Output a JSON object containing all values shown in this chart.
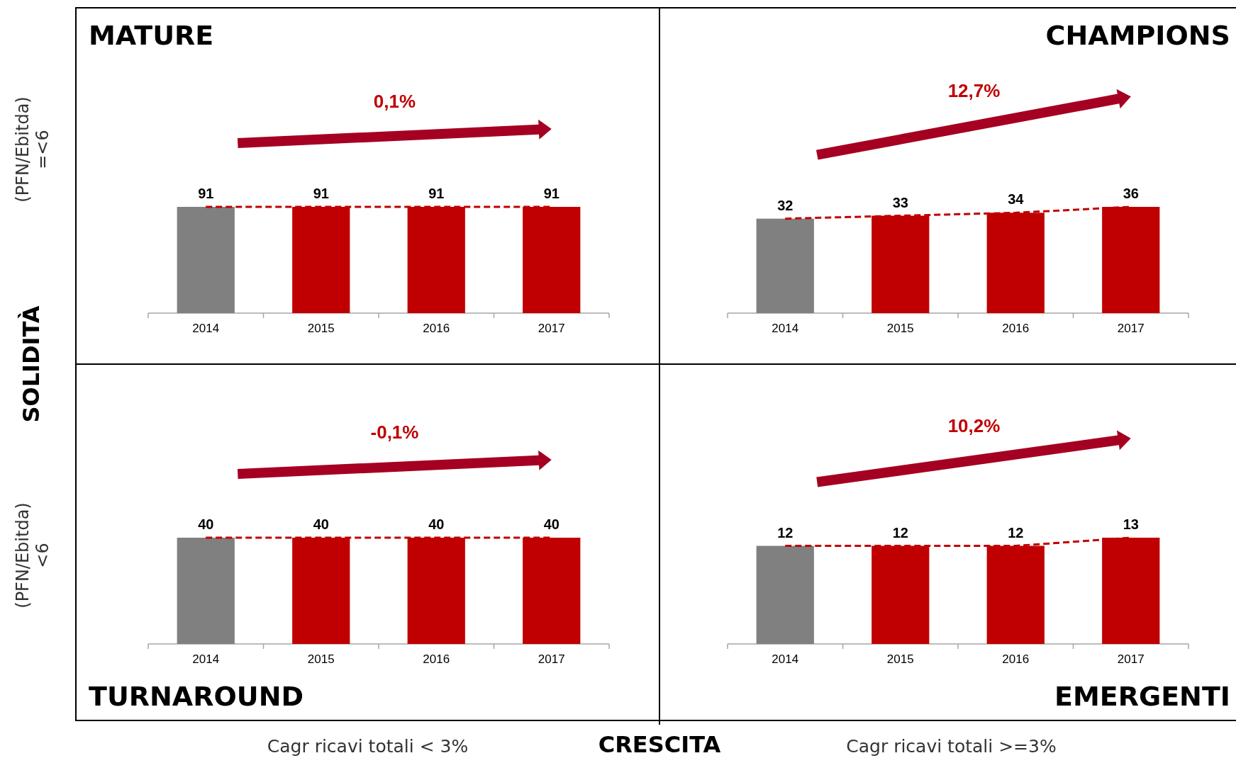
{
  "chart_data": [
    {
      "type": "bar",
      "title": "MATURE",
      "ylabel": "(PFN/Ebitda)\n=<6",
      "annotations": [
        "0,1%",
        "SOLIDITÀ"
      ],
      "categories": [
        "2014",
        "2015",
        "2016",
        "2017"
      ],
      "line_style": "dashed",
      "data_labels": true,
      "series": [
        {
          "type": "bar",
          "colors": [
            "#808080",
            "#c00000",
            "#c00000",
            "#c00000"
          ],
          "values": [
            91,
            91,
            91,
            91
          ]
        }
      ]
    },
    {
      "type": "bar",
      "title": "CHAMPIONS",
      "annotations": [
        "12,7%"
      ],
      "categories": [
        "2014",
        "2015",
        "2016",
        "2017"
      ],
      "line_style": "dashed",
      "data_labels": true,
      "series": [
        {
          "type": "bar",
          "colors": [
            "#808080",
            "#c00000",
            "#c00000",
            "#c00000"
          ],
          "values": [
            32,
            33,
            34,
            36
          ]
        }
      ]
    },
    {
      "type": "bar",
      "title": "TURNAROUND",
      "ylabel": "(PFN/Ebitda)\n<6",
      "xlabel": "Cagr ricavi totali < 3%",
      "annotations": [
        "-0,1%"
      ],
      "categories": [
        "2014",
        "2015",
        "2016",
        "2017"
      ],
      "line_style": "dashed",
      "data_labels": true,
      "series": [
        {
          "type": "bar",
          "colors": [
            "#808080",
            "#c00000",
            "#c00000",
            "#c00000"
          ],
          "values": [
            40,
            40,
            40,
            40
          ]
        }
      ]
    },
    {
      "type": "bar",
      "title": "EMERGENTI",
      "xlabel": "Cagr ricavi totali >=3%",
      "annotations": [
        "10,2%",
        "CRESCITA"
      ],
      "categories": [
        "2014",
        "2015",
        "2016",
        "2017"
      ],
      "line_style": "dashed",
      "data_labels": true,
      "series": [
        {
          "type": "bar",
          "colors": [
            "#808080",
            "#c00000",
            "#c00000",
            "#c00000"
          ],
          "values": [
            12,
            12,
            12,
            13
          ]
        }
      ]
    }
  ]
}
